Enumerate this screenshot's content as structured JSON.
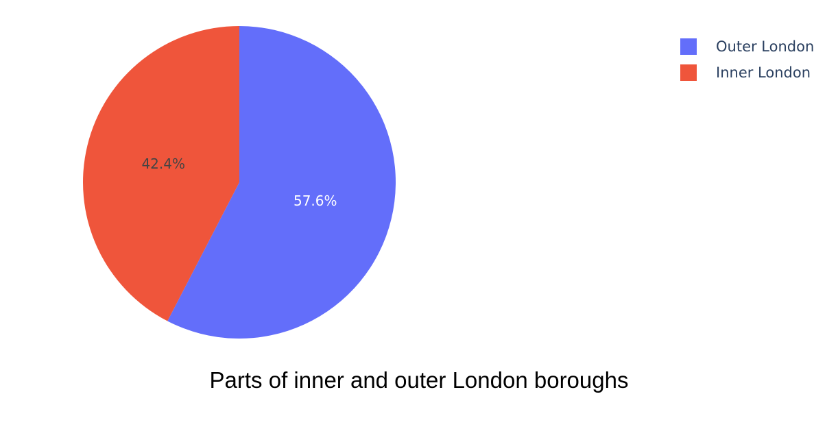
{
  "chart_data": {
    "type": "pie",
    "title": "Parts of inner and outer London boroughs",
    "slices": [
      {
        "label": "Outer London",
        "value": 57.6,
        "display": "57.6%",
        "color": "#636efa",
        "text_color": "#ffffff"
      },
      {
        "label": "Inner London",
        "value": 42.4,
        "display": "42.4%",
        "color": "#ef553b",
        "text_color": "#444444"
      }
    ],
    "legend_position": "top-right",
    "start": "12 o'clock",
    "direction": "clockwise"
  }
}
